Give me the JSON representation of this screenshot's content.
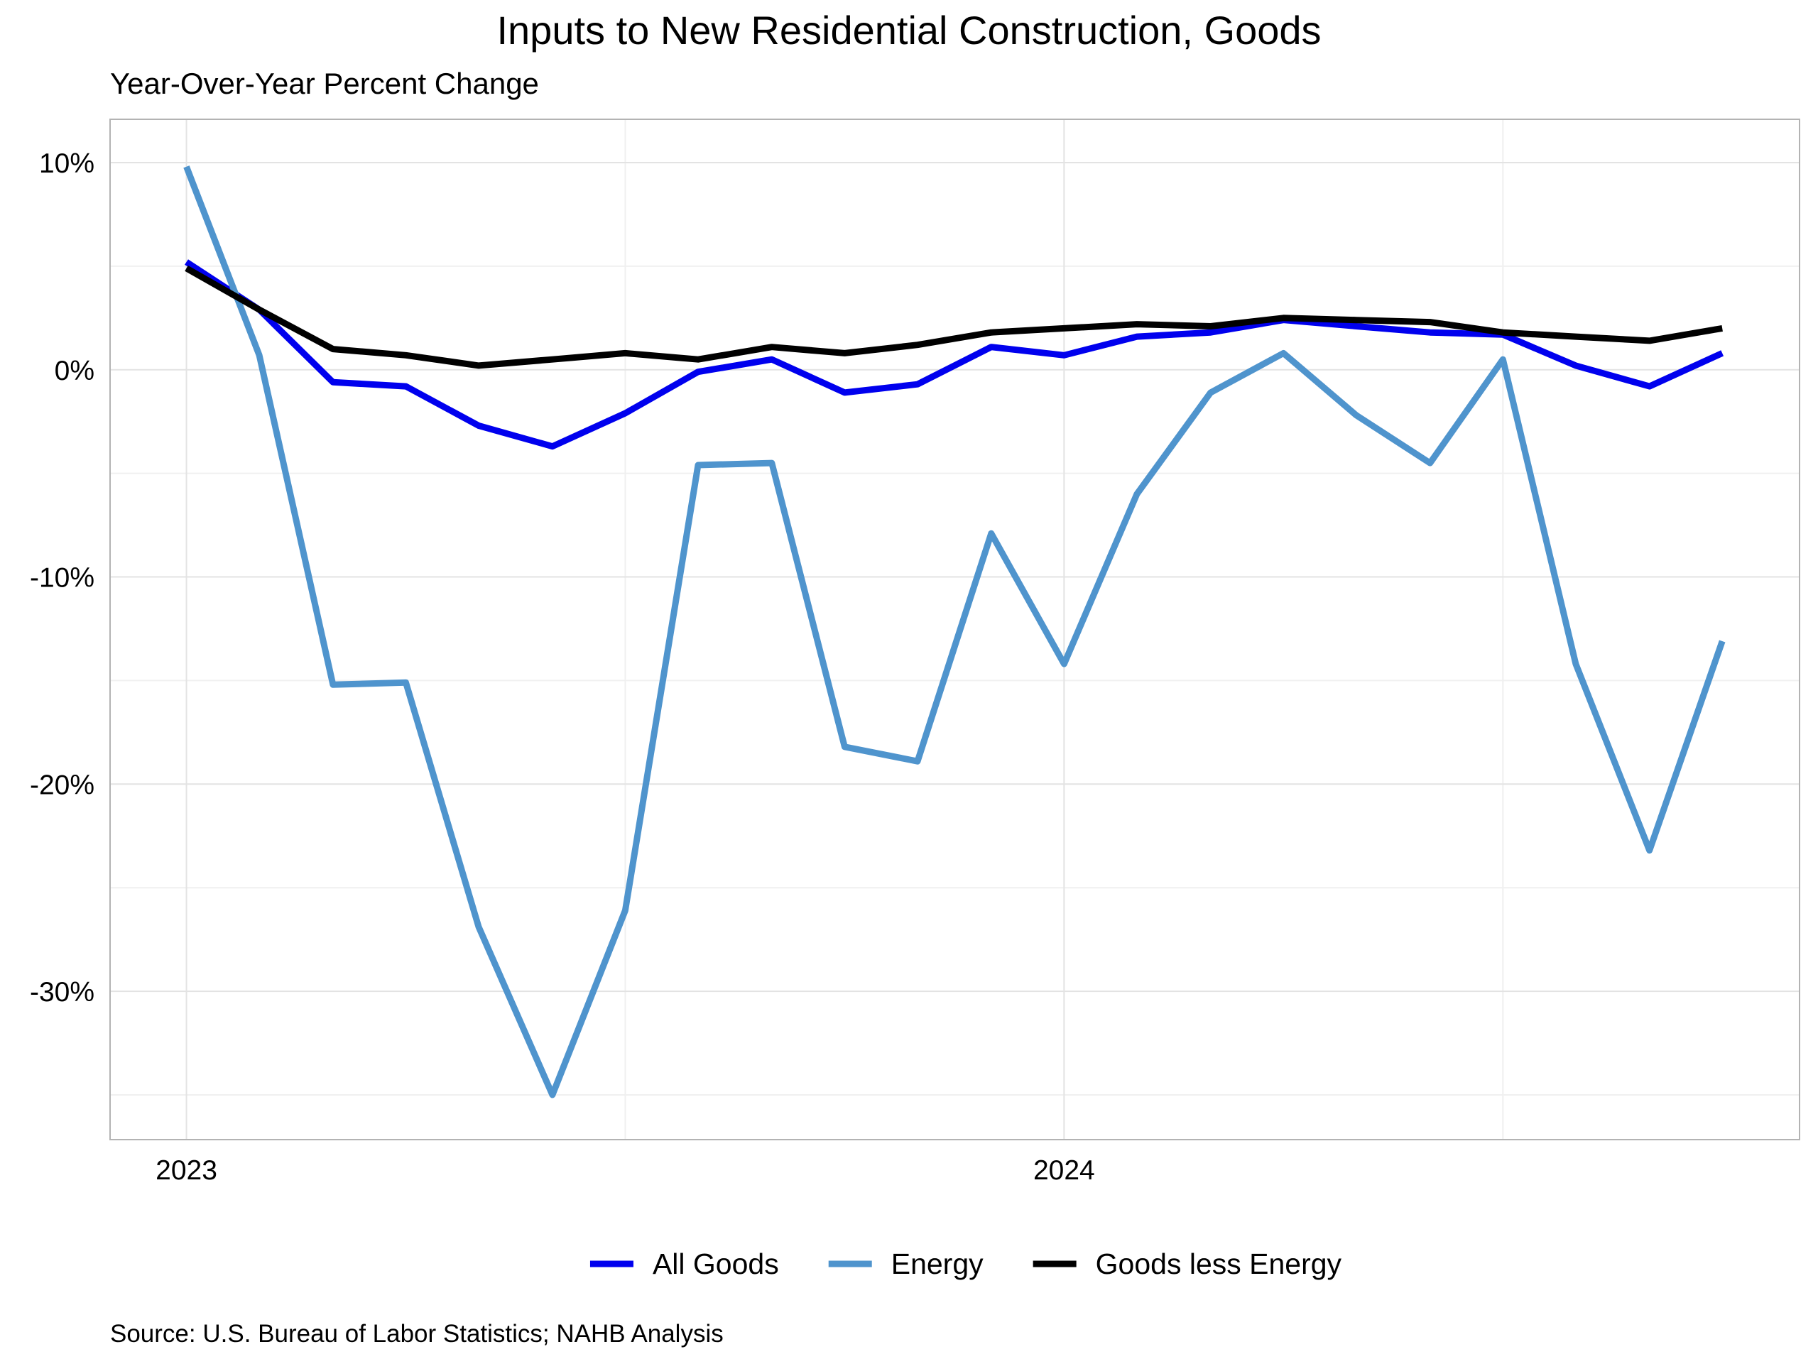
{
  "chart_data": {
    "type": "line",
    "title": "Inputs to New Residential Construction, Goods",
    "subtitle": "Year-Over-Year Percent Change",
    "source": "Source: U.S. Bureau of Labor Statistics; NAHB Analysis",
    "x": [
      2023,
      2023.083,
      2023.167,
      2023.25,
      2023.333,
      2023.417,
      2023.5,
      2023.583,
      2023.667,
      2023.75,
      2023.833,
      2023.917,
      2024,
      2024.083,
      2024.167,
      2024.25,
      2024.333,
      2024.417,
      2024.5,
      2024.583,
      2024.667,
      2024.75
    ],
    "xlim": [
      2022.913,
      2024.838
    ],
    "xticks": [
      2023,
      2024
    ],
    "ylim": [
      -37.16,
      12.09
    ],
    "yticks": [
      {
        "value": 10,
        "label": "10%"
      },
      {
        "value": 0,
        "label": "0%"
      },
      {
        "value": -10,
        "label": "-10%"
      },
      {
        "value": -20,
        "label": "-20%"
      },
      {
        "value": -30,
        "label": "-30%"
      }
    ],
    "grid": true,
    "legend": "bottom",
    "series": [
      {
        "name": "All Goods",
        "color": "#0000ee",
        "values": [
          5.2,
          2.9,
          -0.6,
          -0.8,
          -2.7,
          -3.7,
          -2.1,
          -0.1,
          0.5,
          -1.1,
          -0.7,
          1.1,
          0.7,
          1.6,
          1.8,
          2.4,
          2.1,
          1.8,
          1.7,
          0.2,
          -0.8,
          0.8
        ]
      },
      {
        "name": "Energy",
        "color": "#4f94cd",
        "values": [
          9.8,
          0.7,
          -15.2,
          -15.1,
          -26.9,
          -35.0,
          -26.1,
          -4.6,
          -4.5,
          -18.2,
          -18.9,
          -7.9,
          -14.2,
          -6.0,
          -1.1,
          0.8,
          -2.2,
          -4.5,
          0.5,
          -14.2,
          -23.2,
          -13.1
        ]
      },
      {
        "name": "Goods less Energy",
        "color": "#000000",
        "values": [
          4.9,
          2.9,
          1.0,
          0.7,
          0.2,
          0.5,
          0.8,
          0.5,
          1.1,
          0.8,
          1.2,
          1.8,
          2.0,
          2.2,
          2.1,
          2.5,
          2.4,
          2.3,
          1.8,
          1.6,
          1.4,
          2.0
        ]
      }
    ]
  }
}
